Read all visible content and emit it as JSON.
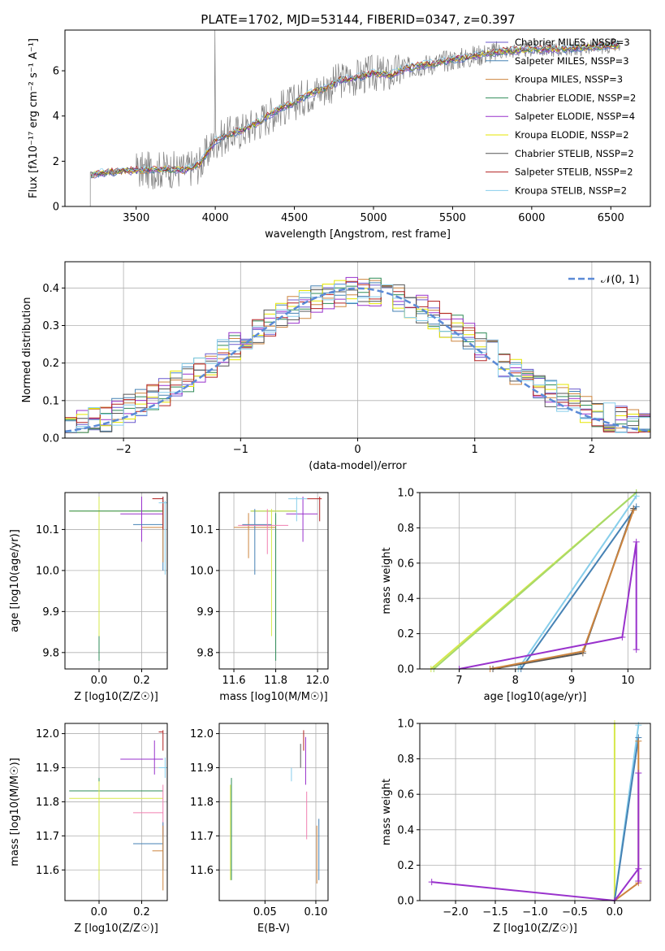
{
  "title": "PLATE=1702, MJD=53144, FIBERID=0347, z=0.397",
  "colors": {
    "chabrier_miles": "#6a5acd",
    "salpeter_miles": "#4682b4",
    "kroupa_miles": "#cd853f",
    "chabrier_elodie": "#2e8b57",
    "salpeter_elodie": "#9932cc",
    "kroupa_elodie": "#e6e600",
    "chabrier_stelib": "#555555",
    "salpeter_stelib": "#b22222",
    "kroupa_stelib": "#87ceeb",
    "data_spectrum": "#808080",
    "gaussian": "#5b8ad6"
  },
  "chart_data": [
    {
      "type": "line",
      "title": "PLATE=1702, MJD=53144, FIBERID=0347, z=0.397",
      "xlabel": "wavelength [Angstrom, rest frame]",
      "ylabel": "Flux [fλ10⁻¹⁷ erg cm⁻² s⁻¹ A⁻¹]",
      "xlim": [
        3050,
        6750
      ],
      "ylim": [
        0,
        7.8
      ],
      "xticks": [
        3500,
        4000,
        4500,
        5000,
        5500,
        6000,
        6500
      ],
      "yticks": [
        0,
        2,
        4,
        6
      ],
      "legend_position": "top-right",
      "legend": [
        "Chabrier MILES, NSSP=3",
        "Salpeter MILES, NSSP=3",
        "Kroupa MILES, NSSP=3",
        "Chabrier ELODIE, NSSP=2",
        "Salpeter ELODIE, NSSP=4",
        "Kroupa ELODIE, NSSP=2",
        "Chabrier STELIB, NSSP=2",
        "Salpeter STELIB, NSSP=2",
        "Kroupa STELIB, NSSP=2"
      ],
      "model_continuum": {
        "x": [
          3210,
          3300,
          3400,
          3500,
          3600,
          3700,
          3800,
          3900,
          4000,
          4100,
          4200,
          4300,
          4400,
          4500,
          4600,
          4700,
          4800,
          4900,
          5000,
          5100,
          5200,
          5300,
          5400,
          5500,
          5600,
          5700,
          5800,
          5900,
          6000,
          6100,
          6200,
          6300,
          6400,
          6500,
          6550
        ],
        "y": [
          1.4,
          1.5,
          1.55,
          1.6,
          1.6,
          1.65,
          1.6,
          1.85,
          2.9,
          3.2,
          3.45,
          3.85,
          4.3,
          4.6,
          5.0,
          5.25,
          5.6,
          5.7,
          5.9,
          5.8,
          6.1,
          6.25,
          6.35,
          6.5,
          6.6,
          6.75,
          6.85,
          6.9,
          6.95,
          6.95,
          6.95,
          7.0,
          7.05,
          7.1,
          7.1
        ]
      }
    },
    {
      "type": "bar",
      "xlabel": "(data-model)/error",
      "ylabel": "Normed distribution",
      "xlim": [
        -2.5,
        2.5
      ],
      "ylim": [
        0,
        0.47
      ],
      "xticks": [
        -2,
        -1,
        0,
        1,
        2
      ],
      "yticks": [
        0.0,
        0.1,
        0.2,
        0.3,
        0.4
      ],
      "legend_position": "top-right",
      "legend": [
        "𝒩(0, 1)"
      ],
      "gaussian": {
        "mean": 0,
        "sigma": 1
      }
    },
    {
      "type": "scatter",
      "xlabel": "Z [log10(Z/Z☉)]",
      "ylabel": "age  [log10(age/yr)]",
      "xlim": [
        -0.16,
        0.32
      ],
      "ylim": [
        9.76,
        10.19
      ],
      "xticks": [
        0.0,
        0.2
      ],
      "yticks": [
        9.8,
        9.9,
        10.0,
        10.1
      ]
    },
    {
      "type": "scatter",
      "xlabel": "mass [log10(M/M☉)]",
      "ylabel": "",
      "xlim": [
        11.53,
        12.05
      ],
      "ylim": [
        9.76,
        10.19
      ],
      "xticks": [
        11.6,
        11.8,
        12.0
      ],
      "yticks": [
        9.8,
        9.9,
        10.0,
        10.1
      ]
    },
    {
      "type": "line",
      "xlabel": "age  [log10(age/yr)]",
      "ylabel": "mass weight",
      "xlim": [
        6.3,
        10.4
      ],
      "ylim": [
        0,
        1
      ],
      "xticks": [
        7,
        8,
        9,
        10
      ],
      "yticks": [
        0.0,
        0.2,
        0.4,
        0.6,
        0.8,
        1.0
      ]
    },
    {
      "type": "scatter",
      "xlabel": "Z [log10(Z/Z☉)]",
      "ylabel": "mass [log10(M/M☉)]",
      "xlim": [
        -0.16,
        0.32
      ],
      "ylim": [
        11.51,
        12.03
      ],
      "xticks": [
        0.0,
        0.2
      ],
      "yticks": [
        11.6,
        11.7,
        11.8,
        11.9,
        12.0
      ]
    },
    {
      "type": "scatter",
      "xlabel": "E(B-V)",
      "ylabel": "",
      "xlim": [
        0.005,
        0.112
      ],
      "ylim": [
        11.51,
        12.03
      ],
      "xticks": [
        0.05,
        0.1
      ],
      "yticks": [
        11.6,
        11.7,
        11.8,
        11.9,
        12.0
      ]
    },
    {
      "type": "line",
      "xlabel": "Z [log10(Z/Z☉)]",
      "ylabel": "mass weight",
      "xlim": [
        -2.45,
        0.45
      ],
      "ylim": [
        0,
        1
      ],
      "xticks": [
        -2.0,
        -1.5,
        -1.0,
        -0.5,
        0.0
      ],
      "yticks": [
        0.0,
        0.2,
        0.4,
        0.6,
        0.8,
        1.0
      ]
    }
  ]
}
